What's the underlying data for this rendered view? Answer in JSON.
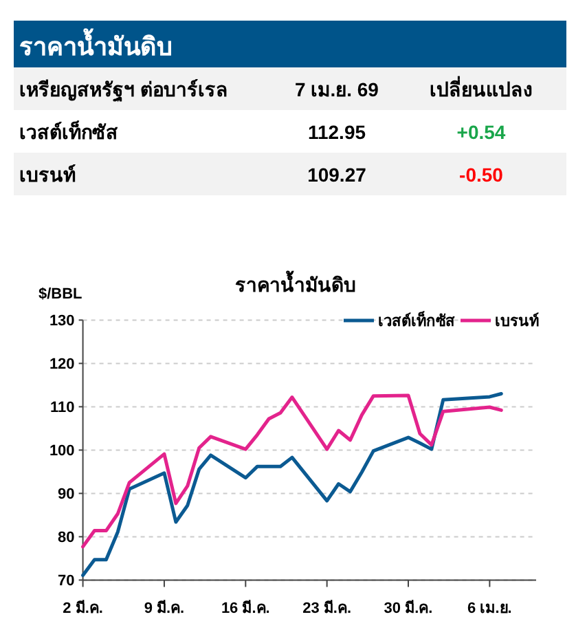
{
  "chart_data": [
    {
      "type": "other",
      "title": "ราคาน้ำมันดิบ",
      "annotations": [
        "เหรียญสหรัฐฯ ต่อบาร์เรล",
        "7 เม.ย. 69",
        "เปลี่ยนแปลง",
        "เวสต์เท็กซัส",
        "112.95",
        "+0.54",
        "เบรนท์",
        "109.27",
        "-0.50"
      ],
      "colors": [
        "#000000",
        "#000000",
        "#000000",
        "#000000",
        "#000000",
        "#1aa64b",
        "#000000",
        "#000000",
        "#ff0000"
      ]
    },
    {
      "type": "line",
      "title": "ราคาน้ำมันดิบ",
      "ylabel": "$/BBL",
      "x": [
        "--03-02",
        "--03-03",
        "--03-04",
        "--03-05",
        "--03-06",
        "--03-09",
        "--03-10",
        "--03-11",
        "--03-12",
        "--03-13",
        "--03-16",
        "--03-17",
        "--03-18",
        "--03-19",
        "--03-20",
        "--03-23",
        "--03-24",
        "--03-25",
        "--03-26",
        "--03-27",
        "--03-30",
        "--03-31",
        "--04-01",
        "--04-02",
        "--04-06",
        "--04-07"
      ],
      "series": [
        {
          "name": "เวสต์เท็กซัส",
          "color": "#0b5a92",
          "values": [
            71.1,
            74.7,
            74.7,
            81.1,
            91.0,
            94.7,
            83.4,
            87.2,
            95.6,
            98.8,
            93.6,
            96.2,
            96.2,
            96.2,
            98.3,
            88.3,
            92.2,
            90.4,
            94.9,
            99.8,
            102.9,
            101.6,
            100.2,
            111.6,
            112.3,
            113.0
          ]
        },
        {
          "name": "เบรนท์",
          "color": "#e3238c",
          "values": [
            77.7,
            81.4,
            81.4,
            85.3,
            92.5,
            99.1,
            87.7,
            91.7,
            100.5,
            103.1,
            100.2,
            103.5,
            107.2,
            108.6,
            112.2,
            100.2,
            104.5,
            102.3,
            108.1,
            112.5,
            112.6,
            103.8,
            101.2,
            108.9,
            109.9,
            109.2
          ]
        }
      ],
      "xlim": [
        "--03-02",
        "--04-10"
      ],
      "xticks": [
        {
          "value": "--03-02",
          "label": "2 มี.ค."
        },
        {
          "value": "--03-09",
          "label": "9 มี.ค."
        },
        {
          "value": "--03-16",
          "label": "16 มี.ค."
        },
        {
          "value": "--03-23",
          "label": "23 มี.ค."
        },
        {
          "value": "--03-30",
          "label": "30 มี.ค."
        },
        {
          "value": "--04-06",
          "label": "6 เม.ย."
        }
      ],
      "ylim": [
        70,
        130
      ],
      "yticks": [
        70,
        80,
        90,
        100,
        110,
        120,
        130
      ],
      "grid": "y",
      "legend": "top right",
      "line_style": "solid",
      "marker": "none"
    }
  ]
}
